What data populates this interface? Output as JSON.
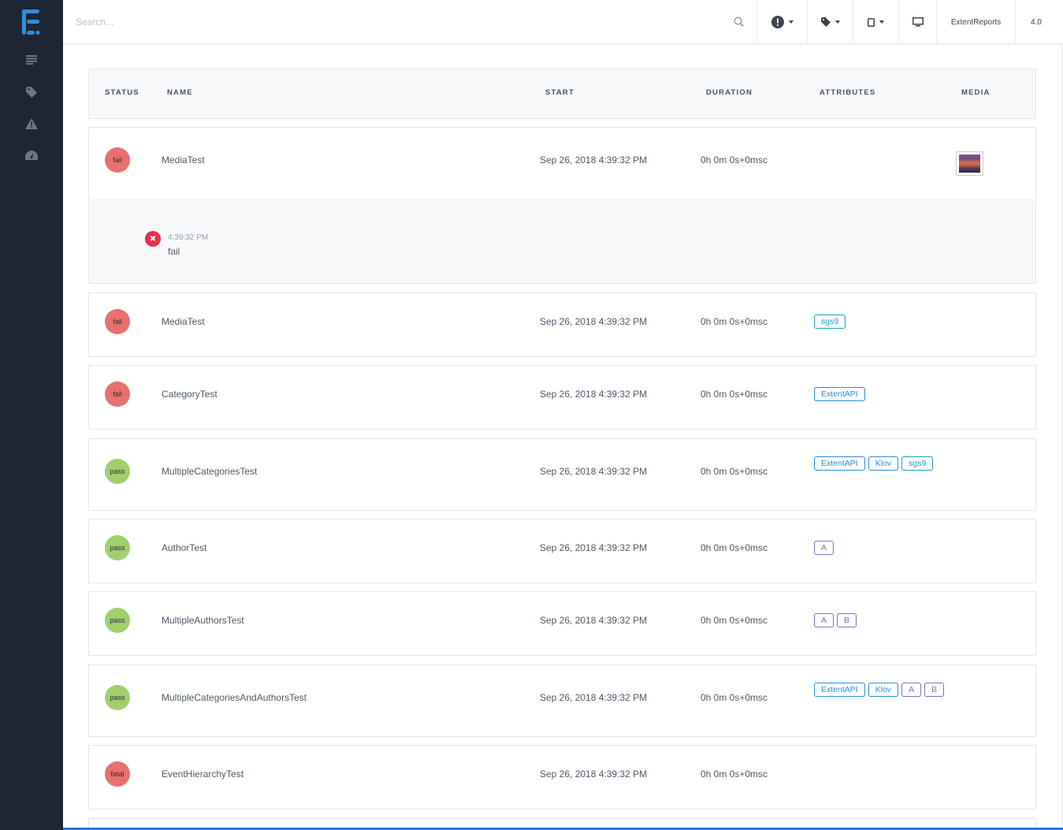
{
  "search": {
    "placeholder": "Search..."
  },
  "topbar": {
    "brand": "ExtentReports",
    "version": "4.0"
  },
  "table": {
    "headers": {
      "status": "STATUS",
      "name": "NAME",
      "start": "START",
      "duration": "DURATION",
      "attributes": "ATTRIBUTES",
      "media": "MEDIA"
    },
    "rows": [
      {
        "status": "fail",
        "name": "MediaTest",
        "start": "Sep 26, 2018 4:39:32 PM",
        "duration": "0h 0m 0s+0msc"
      },
      {
        "status": "fail",
        "name": "MediaTest",
        "start": "Sep 26, 2018 4:39:32 PM",
        "duration": "0h 0m 0s+0msc",
        "tags": [
          "sgs9"
        ]
      },
      {
        "status": "fail",
        "name": "CategoryTest",
        "start": "Sep 26, 2018 4:39:32 PM",
        "duration": "0h 0m 0s+0msc",
        "tags": [
          "ExtentAPI"
        ]
      },
      {
        "status": "pass",
        "name": "MultipleCategoriesTest",
        "start": "Sep 26, 2018 4:39:32 PM",
        "duration": "0h 0m 0s+0msc",
        "tags": [
          "ExtentAPI",
          "Klov",
          "sgs9"
        ]
      },
      {
        "status": "pass",
        "name": "AuthorTest",
        "start": "Sep 26, 2018 4:39:32 PM",
        "duration": "0h 0m 0s+0msc",
        "tags": [
          "A"
        ]
      },
      {
        "status": "pass",
        "name": "MultipleAuthorsTest",
        "start": "Sep 26, 2018 4:39:32 PM",
        "duration": "0h 0m 0s+0msc",
        "tags": [
          "A",
          "B"
        ]
      },
      {
        "status": "pass",
        "name": "MultipleCategoriesAndAuthorsTest",
        "start": "Sep 26, 2018 4:39:32 PM",
        "duration": "0h 0m 0s+0msc",
        "tags": [
          "ExtentAPI",
          "Klov",
          "A",
          "B"
        ]
      },
      {
        "status": "fatal",
        "name": "EventHierarchyTest",
        "start": "Sep 26, 2018 4:39:32 PM",
        "duration": "0h 0m 0s+0msc"
      }
    ],
    "log": {
      "time": "4:39:32 PM",
      "message": "fail"
    }
  },
  "colors": {
    "sidebar": "#1e2634",
    "fail": "#e8706f",
    "pass": "#a2cf6e",
    "device_tag": "#17a2b8",
    "category_tag": "#2a8fd6",
    "author_tag": "#7b6fd1"
  }
}
